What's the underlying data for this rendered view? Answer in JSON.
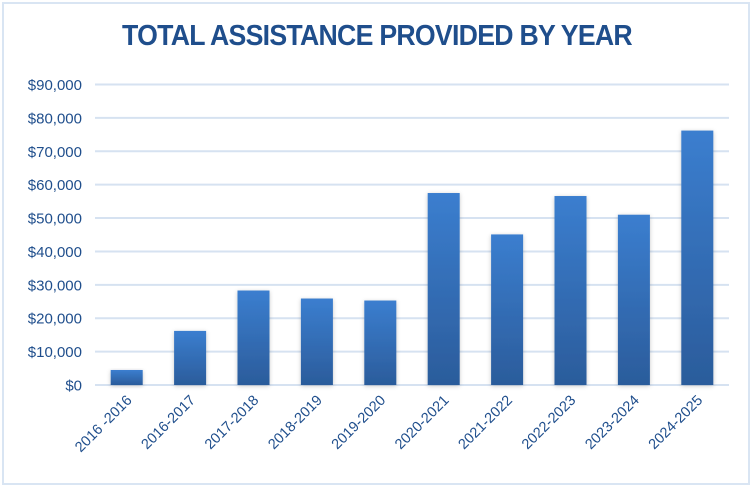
{
  "chart_data": {
    "type": "bar",
    "title": "TOTAL ASSISTANCE PROVIDED BY YEAR",
    "xlabel": "",
    "ylabel": "",
    "categories": [
      "2016 -2016",
      "2016-2017",
      "2017-2018",
      "2018-2019",
      "2019-2020",
      "2020-2021",
      "2021-2022",
      "2022-2023",
      "2023-2024",
      "2024-2025"
    ],
    "values": [
      4500,
      16200,
      28300,
      25900,
      25300,
      57500,
      45100,
      56600,
      51000,
      76200
    ],
    "ylim": [
      0,
      90000
    ],
    "yticks": [
      0,
      10000,
      20000,
      30000,
      40000,
      50000,
      60000,
      70000,
      80000,
      90000
    ],
    "ytick_labels": [
      "$0",
      "$10,000",
      "$20,000",
      "$30,000",
      "$40,000",
      "$50,000",
      "$60,000",
      "$70,000",
      "$80,000",
      "$90,000"
    ],
    "grid": true,
    "legend": "none",
    "colors": {
      "bar_top": "#3b7ecf",
      "bar_bottom": "#2b5c9b",
      "text": "#1f4e8c",
      "grid": "#d6e2f1",
      "border": "#d9e5f3"
    }
  }
}
